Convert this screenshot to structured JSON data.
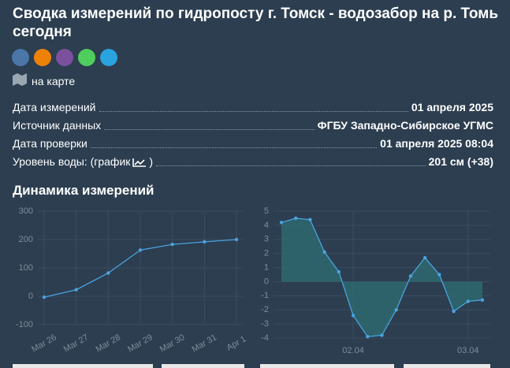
{
  "header": {
    "title": "Сводка измерений по гидропосту г. Томск - водозабор на р. Томь сегодня",
    "map_link": "на карте"
  },
  "table": {
    "rows": [
      [
        "Дата измерений",
        "01 апреля 2025"
      ],
      [
        "Источник данных",
        "ФГБУ Западно-Сибирское УГМС"
      ],
      [
        "Дата проверки",
        "01 апреля 2025 08:04"
      ],
      [
        "Уровень воды: (график",
        ")",
        "201 см (+38)"
      ]
    ]
  },
  "section_title": "Динамика измерений",
  "chart_data": [
    {
      "type": "line",
      "categories": [
        "Mar 26",
        "Mar 27",
        "Mar 28",
        "Mar 29",
        "Mar 30",
        "Mar 31",
        "Apr 1"
      ],
      "values": [
        -3,
        23,
        82,
        163,
        183,
        192,
        200
      ],
      "color": "#4aa3df",
      "ylim": [
        -100,
        300
      ],
      "yticks": [
        -100,
        0,
        100,
        200,
        300
      ],
      "grid": true
    },
    {
      "type": "area",
      "categories": [
        null,
        null,
        null,
        null,
        null,
        "02.04",
        null,
        null,
        null,
        null,
        null,
        null,
        null,
        "03.04",
        null
      ],
      "values": [
        4.2,
        4.5,
        4.4,
        2.1,
        0.7,
        -2.4,
        -3.9,
        -3.8,
        -2,
        0.4,
        1.7,
        0.5,
        -2.1,
        -1.4,
        -1.3
      ],
      "color": "#4aa3df",
      "fill": "#2e6b70",
      "ylim": [
        -4,
        5
      ],
      "yticks": [
        -4,
        -3,
        -2,
        -1,
        0,
        1,
        2,
        3,
        4,
        5
      ],
      "grid": true
    }
  ]
}
